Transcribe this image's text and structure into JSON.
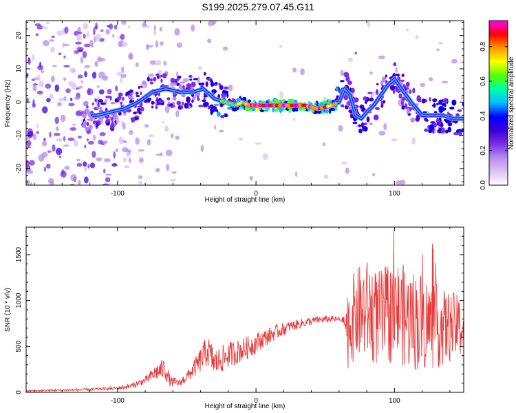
{
  "title": "S199.2025.279.07.45.G11",
  "colors": {
    "line": "#e83a3a",
    "colormap": [
      "#ffffff",
      "#dcc2f5",
      "#b58cf0",
      "#7a2fe6",
      "#3a00d9",
      "#0000ff",
      "#00bfff",
      "#00ffaa",
      "#55ff00",
      "#ffff00",
      "#ff9900",
      "#ff0000",
      "#ff00ff"
    ]
  },
  "chart_data": [
    {
      "type": "heatmap",
      "title": "S199.2025.279.07.45.G11",
      "xlabel": "Height of straight line (km)",
      "ylabel": "Frequency (Hz)",
      "xlim": [
        -166,
        150
      ],
      "ylim": [
        -25,
        24.5
      ],
      "x_ticks": [
        -100,
        0,
        100
      ],
      "x_tick_labels": [
        "-100",
        "0",
        "100"
      ],
      "y_ticks": [
        -20,
        -10,
        0,
        10,
        20
      ],
      "y_tick_labels": [
        "-20",
        "-10",
        "0",
        "10",
        "20"
      ],
      "colorbar": {
        "label": "Normalized spectral amplitude",
        "range": [
          0.0,
          0.95
        ],
        "ticks": [
          0.0,
          0.2,
          0.4,
          0.6,
          0.8
        ],
        "tick_labels": [
          "0.0",
          "0.2",
          "0.4",
          "0.6",
          "0.8"
        ]
      },
      "ridge": [
        [
          -115,
          -4,
          0.35
        ],
        [
          -105,
          -3,
          0.4
        ],
        [
          -95,
          -2,
          0.45
        ],
        [
          -85,
          0,
          0.45
        ],
        [
          -75,
          3,
          0.45
        ],
        [
          -65,
          4,
          0.4
        ],
        [
          -55,
          3,
          0.4
        ],
        [
          -45,
          3,
          0.45
        ],
        [
          -38,
          4,
          0.5
        ],
        [
          -30,
          1,
          0.55
        ],
        [
          -22,
          0,
          0.6
        ],
        [
          -15,
          -1,
          0.65
        ],
        [
          -10,
          0,
          0.75
        ],
        [
          -5,
          -1,
          0.85
        ],
        [
          0,
          -1,
          0.9
        ],
        [
          8,
          -1,
          0.9
        ],
        [
          15,
          -1,
          0.9
        ],
        [
          25,
          -1,
          0.85
        ],
        [
          35,
          -1,
          0.85
        ],
        [
          45,
          -2,
          0.85
        ],
        [
          55,
          -1,
          0.8
        ],
        [
          60,
          0,
          0.6
        ],
        [
          64,
          4,
          0.5
        ],
        [
          68,
          2,
          0.45
        ],
        [
          72,
          -4,
          0.5
        ],
        [
          76,
          -5,
          0.5
        ],
        [
          80,
          -3,
          0.5
        ],
        [
          85,
          -1,
          0.45
        ],
        [
          90,
          2,
          0.45
        ],
        [
          95,
          5,
          0.45
        ],
        [
          100,
          7,
          0.45
        ],
        [
          105,
          4,
          0.4
        ],
        [
          112,
          0,
          0.4
        ],
        [
          120,
          -4,
          0.5
        ],
        [
          128,
          -4,
          0.5
        ],
        [
          135,
          -4,
          0.55
        ],
        [
          142,
          -5,
          0.5
        ],
        [
          148,
          -5,
          0.5
        ]
      ]
    },
    {
      "type": "line",
      "xlabel": "Height of straight line (km)",
      "ylabel": "SNR (10 * v/v)",
      "xlim": [
        -166,
        150
      ],
      "ylim": [
        0,
        1800
      ],
      "x_ticks": [
        -100,
        0,
        100
      ],
      "x_tick_labels": [
        "-100",
        "0",
        "100"
      ],
      "y_ticks": [
        0,
        500,
        1000,
        1500
      ],
      "y_tick_labels": [
        "0",
        "500",
        "1000",
        "1500"
      ],
      "envelope": [
        [
          -166,
          15,
          10
        ],
        [
          -120,
          30,
          15
        ],
        [
          -100,
          45,
          20
        ],
        [
          -90,
          70,
          30
        ],
        [
          -80,
          130,
          40
        ],
        [
          -72,
          220,
          90
        ],
        [
          -66,
          260,
          120
        ],
        [
          -62,
          120,
          60
        ],
        [
          -55,
          100,
          40
        ],
        [
          -48,
          200,
          70
        ],
        [
          -42,
          310,
          120
        ],
        [
          -35,
          460,
          180
        ],
        [
          -30,
          320,
          150
        ],
        [
          -25,
          360,
          150
        ],
        [
          -18,
          420,
          140
        ],
        [
          -10,
          460,
          130
        ],
        [
          -2,
          520,
          120
        ],
        [
          5,
          580,
          100
        ],
        [
          15,
          660,
          80
        ],
        [
          25,
          720,
          60
        ],
        [
          35,
          760,
          50
        ],
        [
          45,
          790,
          40
        ],
        [
          55,
          800,
          35
        ],
        [
          63,
          790,
          30
        ],
        [
          66,
          700,
          450
        ],
        [
          72,
          850,
          500
        ],
        [
          80,
          900,
          550
        ],
        [
          88,
          800,
          520
        ],
        [
          95,
          850,
          550
        ],
        [
          102,
          880,
          560
        ],
        [
          110,
          800,
          560
        ],
        [
          118,
          780,
          560
        ],
        [
          126,
          740,
          500
        ],
        [
          135,
          700,
          420
        ],
        [
          142,
          720,
          380
        ],
        [
          150,
          700,
          320
        ]
      ]
    }
  ]
}
